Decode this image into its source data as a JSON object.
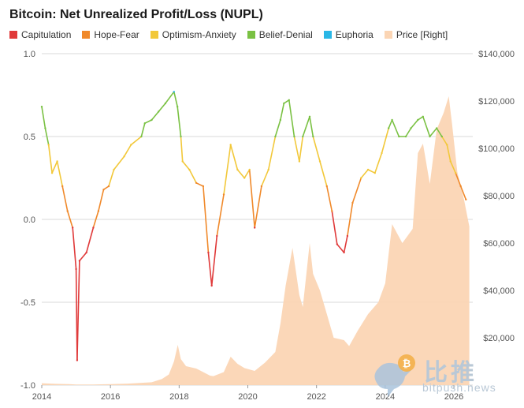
{
  "chart_data": {
    "type": "line",
    "title": "Bitcoin: Net Unrealized Profit/Loss (NUPL)",
    "legend_position": "top-left",
    "grid": true,
    "x_ticks": [
      "2014",
      "2016",
      "2018",
      "2020",
      "2022",
      "2024",
      "2026"
    ],
    "x_range": [
      2014.0,
      2026.55
    ],
    "y_left": {
      "ticks": [
        "1.0",
        "0.5",
        "0.0",
        "-0.5",
        "-1.0"
      ],
      "range": [
        -1.0,
        1.0
      ]
    },
    "y_right": {
      "ticks": [
        "$140,000",
        "$120,000",
        "$100,000",
        "$80,000",
        "$60,000",
        "$40,000",
        "$20,000"
      ],
      "range": [
        0,
        140000
      ]
    },
    "legend": [
      {
        "name": "Capitulation",
        "color": "#e03a3a"
      },
      {
        "name": "Hope-Fear",
        "color": "#f0892a"
      },
      {
        "name": "Optimism-Anxiety",
        "color": "#f2c83a"
      },
      {
        "name": "Belief-Denial",
        "color": "#7ac143"
      },
      {
        "name": "Euphoria",
        "color": "#2ab7e6"
      },
      {
        "name": "Price [Right]",
        "color": "#fbd5b4"
      }
    ],
    "zone_thresholds": [
      0,
      0.25,
      0.5,
      0.75
    ],
    "series": [
      {
        "name": "NUPL",
        "x": [
          2014.0,
          2014.1,
          2014.2,
          2014.3,
          2014.45,
          2014.6,
          2014.75,
          2014.9,
          2015.0,
          2015.03,
          2015.1,
          2015.3,
          2015.5,
          2015.65,
          2015.8,
          2015.95,
          2016.1,
          2016.4,
          2016.6,
          2016.9,
          2017.0,
          2017.2,
          2017.4,
          2017.6,
          2017.85,
          2017.95,
          2018.05,
          2018.1,
          2018.3,
          2018.5,
          2018.7,
          2018.85,
          2018.95,
          2019.1,
          2019.3,
          2019.5,
          2019.7,
          2019.9,
          2020.05,
          2020.2,
          2020.4,
          2020.6,
          2020.8,
          2020.95,
          2021.05,
          2021.2,
          2021.35,
          2021.5,
          2021.6,
          2021.8,
          2021.9,
          2022.1,
          2022.3,
          2022.45,
          2022.6,
          2022.8,
          2022.9,
          2023.05,
          2023.3,
          2023.5,
          2023.7,
          2023.9,
          2024.1,
          2024.2,
          2024.4,
          2024.6,
          2024.75,
          2024.95,
          2025.1,
          2025.3,
          2025.5,
          2025.65,
          2025.8,
          2025.9,
          2026.05,
          2026.2,
          2026.35
        ],
        "values": [
          0.68,
          0.55,
          0.45,
          0.28,
          0.35,
          0.2,
          0.05,
          -0.05,
          -0.3,
          -0.85,
          -0.25,
          -0.2,
          -0.05,
          0.05,
          0.18,
          0.2,
          0.3,
          0.38,
          0.45,
          0.5,
          0.58,
          0.6,
          0.65,
          0.7,
          0.77,
          0.68,
          0.5,
          0.35,
          0.3,
          0.22,
          0.2,
          -0.2,
          -0.4,
          -0.1,
          0.15,
          0.45,
          0.3,
          0.25,
          0.3,
          -0.05,
          0.2,
          0.3,
          0.5,
          0.6,
          0.7,
          0.72,
          0.5,
          0.35,
          0.5,
          0.62,
          0.5,
          0.35,
          0.2,
          0.05,
          -0.15,
          -0.2,
          -0.1,
          0.1,
          0.25,
          0.3,
          0.28,
          0.4,
          0.55,
          0.6,
          0.5,
          0.5,
          0.55,
          0.6,
          0.62,
          0.5,
          0.55,
          0.5,
          0.45,
          0.35,
          0.28,
          0.2,
          0.12
        ]
      },
      {
        "name": "Price [Right]",
        "x": [
          2014.0,
          2014.4,
          2014.8,
          2015.0,
          2015.5,
          2016.0,
          2016.5,
          2016.9,
          2017.2,
          2017.5,
          2017.7,
          2017.85,
          2017.96,
          2018.05,
          2018.2,
          2018.5,
          2018.9,
          2019.0,
          2019.3,
          2019.5,
          2019.7,
          2019.9,
          2020.2,
          2020.5,
          2020.8,
          2020.95,
          2021.1,
          2021.3,
          2021.5,
          2021.6,
          2021.8,
          2021.9,
          2022.1,
          2022.3,
          2022.5,
          2022.8,
          2022.95,
          2023.2,
          2023.5,
          2023.8,
          2024.0,
          2024.2,
          2024.5,
          2024.8,
          2024.95,
          2025.1,
          2025.3,
          2025.5,
          2025.7,
          2025.85,
          2025.95,
          2026.1,
          2026.3,
          2026.45
        ],
        "values": [
          800,
          550,
          400,
          250,
          260,
          400,
          650,
          950,
          1200,
          2600,
          4500,
          10000,
          17000,
          11000,
          8000,
          7000,
          4000,
          3800,
          5500,
          12000,
          9000,
          7200,
          6000,
          9500,
          14000,
          26000,
          42000,
          58000,
          38000,
          33000,
          60000,
          47000,
          40000,
          30000,
          20000,
          19000,
          16500,
          23000,
          30000,
          35000,
          43000,
          68000,
          60000,
          66000,
          98000,
          102000,
          85000,
          108000,
          115000,
          122000,
          110000,
          90000,
          78000,
          67000
        ]
      }
    ]
  },
  "watermark": {
    "brand_cn": "比推",
    "url": "bitpush.news",
    "bitcoin_symbol": "₿"
  }
}
